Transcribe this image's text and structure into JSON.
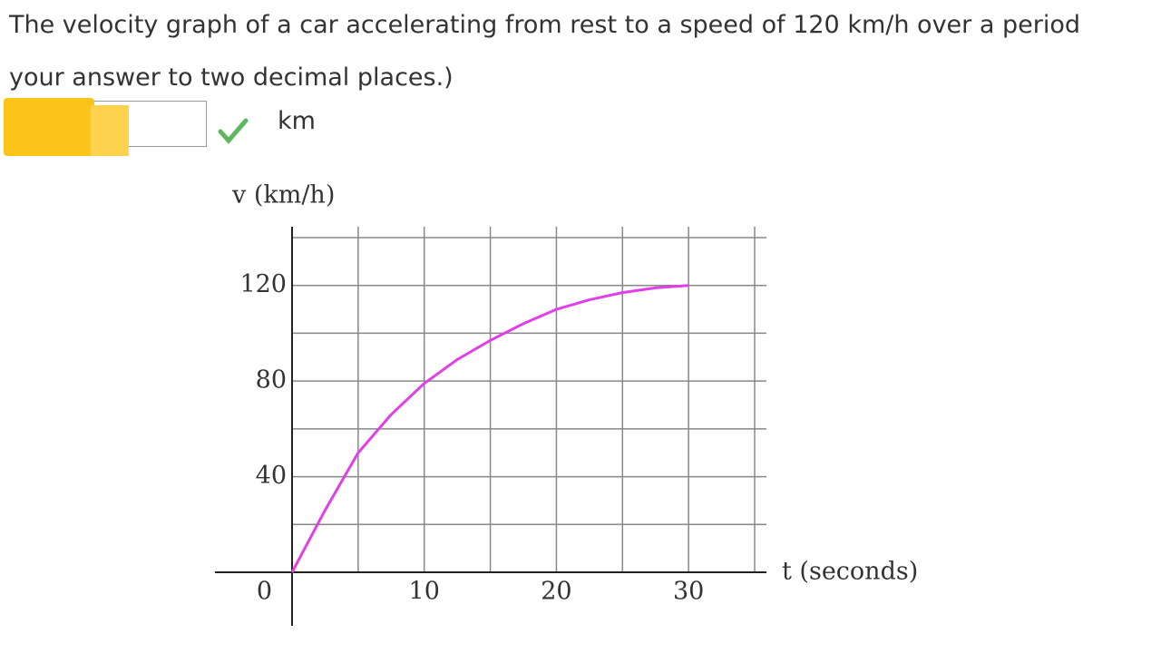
{
  "question": {
    "line1": "The velocity graph of a car accelerating from rest to a speed of 120 km/h over a period",
    "line2": "your answer to two decimal places.)",
    "unit": "km"
  },
  "chart_data": {
    "type": "line",
    "x_label": "t (seconds)",
    "y_label": "v (km/h)",
    "x": [
      0,
      2.5,
      5,
      7.5,
      10,
      12.5,
      15,
      17.5,
      20,
      22.5,
      25,
      27.5,
      30
    ],
    "series": [
      {
        "color": "#e040e8",
        "values": [
          0,
          26,
          50,
          66,
          79,
          89,
          97,
          104,
          110,
          114,
          117,
          119,
          120
        ]
      }
    ],
    "xlim": [
      0,
      35
    ],
    "ylim": [
      0,
      140
    ],
    "xticks": [
      10,
      20,
      30
    ],
    "yticks": [
      0,
      40,
      80,
      120
    ],
    "grid": {
      "x_step": 5,
      "y_step": 20
    }
  }
}
